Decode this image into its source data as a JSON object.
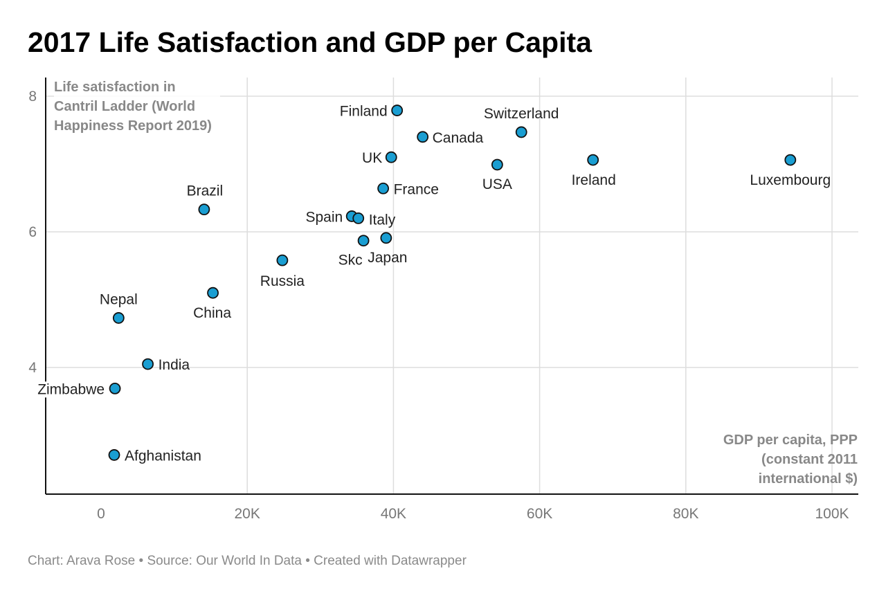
{
  "title": "2017 Life Satisfaction and GDP per Capita",
  "footer": "Chart: Arava Rose • Source: Our World In Data • Created with Datawrapper",
  "colors": {
    "point_fill": "#1a9ed2",
    "point_stroke": "#111111",
    "grid": "#dddddd",
    "axis": "#111111",
    "tick_label": "#777777",
    "axis_title": "#888888"
  },
  "chart_data": {
    "type": "scatter",
    "title": "2017 Life Satisfaction and GDP per Capita",
    "xlabel": "GDP per capita, PPP (constant 2011 international $)",
    "ylabel": "Life satisfaction in Cantril Ladder (World Happiness Report 2019)",
    "xlim": [
      -7500,
      103000
    ],
    "ylim": [
      2.2,
      8.3
    ],
    "x_ticks": [
      0,
      20000,
      40000,
      60000,
      80000,
      100000
    ],
    "x_tick_labels": [
      "0",
      "20K",
      "40K",
      "60K",
      "80K",
      "100K"
    ],
    "y_ticks": [
      4,
      6,
      8
    ],
    "y_tick_labels": [
      "4",
      "6",
      "8"
    ],
    "grid": true,
    "points": [
      {
        "label": "Finland",
        "x": 40500,
        "y": 7.79
      },
      {
        "label": "Switzerland",
        "x": 57500,
        "y": 7.47
      },
      {
        "label": "Canada",
        "x": 44000,
        "y": 7.4
      },
      {
        "label": "UK",
        "x": 39700,
        "y": 7.1
      },
      {
        "label": "USA",
        "x": 54200,
        "y": 6.99
      },
      {
        "label": "Ireland",
        "x": 67300,
        "y": 7.06
      },
      {
        "label": "Luxembourg",
        "x": 94300,
        "y": 7.06
      },
      {
        "label": "France",
        "x": 38600,
        "y": 6.64
      },
      {
        "label": "Brazil",
        "x": 14100,
        "y": 6.33
      },
      {
        "label": "Spain",
        "x": 34300,
        "y": 6.23
      },
      {
        "label": "Italy",
        "x": 35200,
        "y": 6.2
      },
      {
        "label": "Japan",
        "x": 39000,
        "y": 5.91
      },
      {
        "label": "Skc",
        "x": 35900,
        "y": 5.87
      },
      {
        "label": "Russia",
        "x": 24800,
        "y": 5.58
      },
      {
        "label": "China",
        "x": 15300,
        "y": 5.1
      },
      {
        "label": "Nepal",
        "x": 2400,
        "y": 4.73
      },
      {
        "label": "India",
        "x": 6400,
        "y": 4.05
      },
      {
        "label": "Zimbabwe",
        "x": 1900,
        "y": 3.69
      },
      {
        "label": "Afghanistan",
        "x": 1800,
        "y": 2.71
      }
    ]
  }
}
